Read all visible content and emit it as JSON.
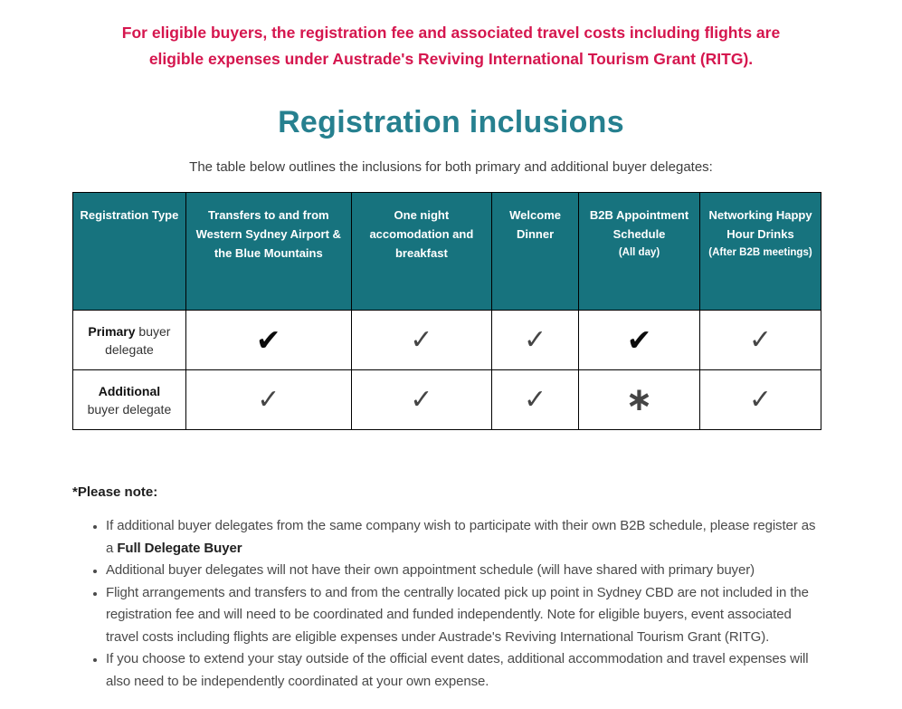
{
  "banner": {
    "lines": [
      "For eligible buyers, the registration fee and associated travel costs including flights are",
      "eligible expenses under Austrade's Reviving International Tourism Grant (RITG)."
    ]
  },
  "heading": "Registration inclusions",
  "intro": "The table below outlines the inclusions for both primary and additional buyer delegates:",
  "table": {
    "columns": [
      {
        "title": "Registration Type"
      },
      {
        "title": "Transfers to and from Western Sydney Airport & the Blue Mountains"
      },
      {
        "title": "One night accomodation and breakfast"
      },
      {
        "title": "Welcome Dinner"
      },
      {
        "title": "B2B Appointment Schedule",
        "subtitle": "(All day)"
      },
      {
        "title": "Networking Happy Hour Drinks",
        "subtitle": "(After B2B meetings)"
      }
    ],
    "rows": [
      {
        "label": [
          {
            "text": "Primary",
            "bold": true
          },
          {
            "text": " buyer delegate",
            "bold": false
          }
        ],
        "cells": [
          "check-heavy",
          "check",
          "check",
          "check-heavy",
          "check"
        ]
      },
      {
        "label": [
          {
            "text": "Additional",
            "bold": true
          },
          {
            "text": " buyer delegate",
            "bold": false
          }
        ],
        "cells": [
          "check",
          "check",
          "check",
          "asterisk",
          "check"
        ]
      }
    ]
  },
  "notes": {
    "heading": "*Please note:",
    "items": [
      [
        {
          "text": "If additional buyer delegates from the same company wish to participate with their own B2B schedule, please register as a ",
          "bold": false
        },
        {
          "text": "Full Delegate Buyer",
          "bold": true
        }
      ],
      [
        {
          "text": "Additional buyer delegates will not have their own appointment schedule (will have shared with primary buyer)",
          "bold": false
        }
      ],
      [
        {
          "text": "Flight arrangements and transfers to and from the centrally located pick up point in Sydney CBD are not included in the registration fee and will need to be coordinated and funded independently. Note for eligible buyers, event associated travel costs including flights are eligible expenses under Austrade's Reviving International Tourism Grant (RITG).",
          "bold": false
        }
      ],
      [
        {
          "text": "If you choose to extend your stay outside of the official event dates, additional accommodation and travel expenses will also need to be independently coordinated at your own expense.",
          "bold": false
        }
      ]
    ]
  },
  "icons": {
    "check": "✓",
    "check_heavy": "✔",
    "asterisk": "∗"
  },
  "colors": {
    "banner_text": "#d5164e",
    "heading_text": "#26808f",
    "table_header_bg": "#17737e",
    "table_header_text": "#ffffff",
    "check_gray": "#454545",
    "check_black": "#0b0b0b",
    "body_text": "#4a4a4a"
  }
}
